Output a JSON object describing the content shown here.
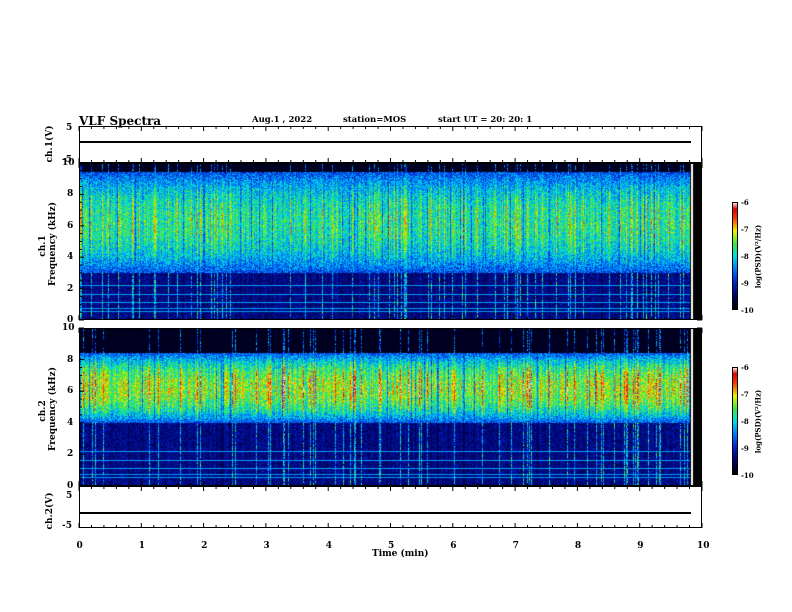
{
  "header": {
    "title": "VLF Spectra",
    "date": "Aug.1  , 2022",
    "station": "station=MOS",
    "start": "start  UT =   20: 20: 1"
  },
  "chart_data": [
    {
      "type": "line",
      "panel": "ch.1 waveform",
      "ylabel": "ch.1(V)",
      "ylim": [
        -5,
        5
      ],
      "yticks": [
        "5",
        "-5"
      ],
      "series": [
        {
          "x": [
            0,
            9.83
          ],
          "y": [
            0,
            0
          ]
        }
      ]
    },
    {
      "type": "heatmap",
      "panel": "ch.1 spectrogram",
      "ylabel": "ch.1\nFrequency (kHz)",
      "ylim": [
        0,
        10
      ],
      "yticks": [
        "0",
        "2",
        "4",
        "6",
        "8",
        "10"
      ],
      "xlim": [
        0,
        10
      ],
      "colorbar": {
        "ticks": [
          "-6",
          "-7",
          "-8",
          "-9",
          "-10"
        ],
        "label": "log(PSD)(V²/Hz)",
        "range": [
          -10,
          -6
        ]
      },
      "description_bands_kHz": {
        "strong_band": [
          3,
          9.5
        ],
        "lines": [
          0.5,
          0.7,
          1.1,
          1.6,
          2.2
        ]
      }
    },
    {
      "type": "heatmap",
      "panel": "ch.2 spectrogram",
      "ylabel": "ch.2\nFrequency (kHz)",
      "ylim": [
        0,
        10
      ],
      "yticks": [
        "0",
        "2",
        "4",
        "6",
        "8",
        "10"
      ],
      "xlim": [
        0,
        10
      ],
      "colorbar": {
        "ticks": [
          "-6",
          "-7",
          "-8",
          "-9",
          "-10"
        ],
        "label": "log(PSD)(V²/Hz)",
        "range": [
          -10,
          -6
        ]
      },
      "description_bands_kHz": {
        "strong_band": [
          4,
          8.5
        ],
        "lines": [
          0.5,
          0.7,
          1.1,
          1.6,
          2.2
        ]
      }
    },
    {
      "type": "line",
      "panel": "ch.2 waveform",
      "ylabel": "ch.2(V)",
      "ylim": [
        -5,
        5
      ],
      "yticks": [
        "5",
        "-5"
      ],
      "series": [
        {
          "x": [
            0,
            9.83
          ],
          "y": [
            0,
            0
          ]
        }
      ]
    }
  ],
  "xaxis": {
    "label": "Time (min)",
    "ticks": [
      "0",
      "1",
      "2",
      "3",
      "4",
      "5",
      "6",
      "7",
      "8",
      "9",
      "10"
    ]
  }
}
